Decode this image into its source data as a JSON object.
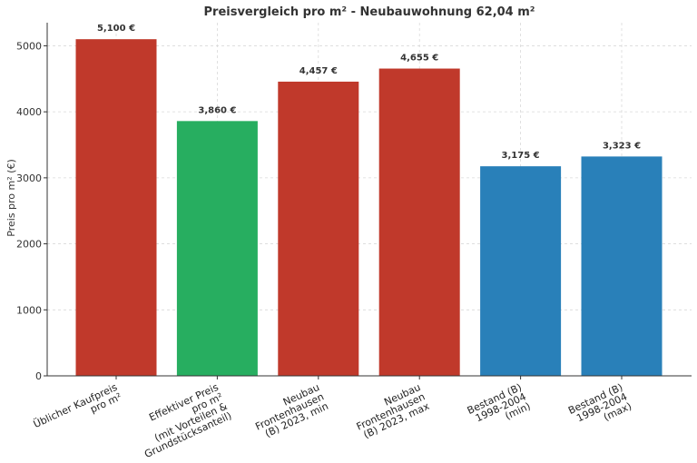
{
  "chart_data": {
    "type": "bar",
    "title": "Preisvergleich pro m² - Neubauwohnung 62,04 m²",
    "xlabel": "",
    "ylabel": "Preis pro m² (€)",
    "ylim": [
      0,
      5350
    ],
    "yticks": [
      0,
      1000,
      2000,
      3000,
      4000,
      5000
    ],
    "grid": true,
    "categories": [
      [
        "Üblicher Kaufpreis",
        "pro m²"
      ],
      [
        "Effektiver Preis",
        "pro m²",
        "(mit Vorteilen &",
        "Grundstücksanteil)"
      ],
      [
        "Neubau",
        "Frontenhausen",
        "(B) 2023, min"
      ],
      [
        "Neubau",
        "Frontenhausen",
        "(B) 2023, max"
      ],
      [
        "Bestand (B)",
        "1998-2004",
        "(min)"
      ],
      [
        "Bestand (B)",
        "1998-2004",
        "(max)"
      ]
    ],
    "values": [
      5100,
      3860,
      4457,
      4655,
      3175,
      3323
    ],
    "value_labels": [
      "5,100 €",
      "3,860 €",
      "4,457 €",
      "4,655 €",
      "3,175 €",
      "3,323 €"
    ],
    "colors": [
      "#c0392b",
      "#27ae60",
      "#c0392b",
      "#c0392b",
      "#2980b9",
      "#2980b9"
    ]
  }
}
